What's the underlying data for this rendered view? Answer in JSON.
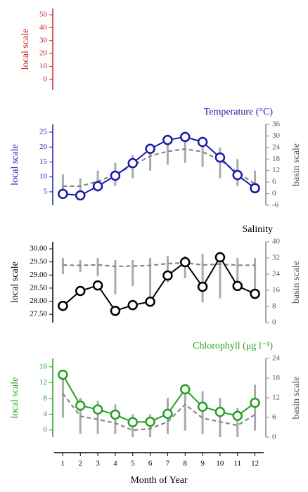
{
  "chart_data": [
    {
      "type": "line",
      "ylabel": "local scale",
      "color": "#cc2222",
      "ylim": [
        -8.2,
        54.9
      ],
      "yticks": [
        0,
        10,
        20,
        30,
        40,
        50
      ]
    },
    {
      "type": "line",
      "title": "Temperature (°C)",
      "ylabel": "local scale",
      "y2label": "basin scale",
      "color": "#1a1aaa",
      "x": [
        1,
        2,
        3,
        4,
        5,
        6,
        7,
        8,
        9,
        10,
        11,
        12
      ],
      "xlim": [
        0.5,
        12.5
      ],
      "ylim": [
        0.5,
        27.6
      ],
      "yticks": [
        5,
        10,
        15,
        20,
        25
      ],
      "y2lim": [
        -6,
        36
      ],
      "y2ticks": [
        -6,
        0,
        6,
        12,
        18,
        24,
        30,
        36
      ],
      "series": [
        {
          "color": "#1a1aaa",
          "values": [
            4.3,
            3.8,
            6.9,
            10.4,
            14.6,
            19.4,
            22.4,
            23.4,
            21.7,
            16.5,
            10.6,
            6.2
          ],
          "marker": "circle"
        },
        {
          "color": "#888888",
          "axis": "y2",
          "dash": true,
          "values": [
            3.9,
            3.9,
            6.4,
            10,
            14.5,
            19.6,
            22,
            23.2,
            21.8,
            17.4,
            11.2,
            5
          ]
        }
      ],
      "ranges": {
        "color": "#aaaaaa",
        "axis": "y2",
        "low": [
          -2,
          -1,
          1,
          4,
          8,
          12,
          15,
          16,
          14,
          8,
          4,
          1
        ],
        "high": [
          10,
          8,
          12,
          16,
          20,
          26,
          28,
          29,
          28,
          24,
          18,
          12
        ]
      }
    },
    {
      "type": "line",
      "title": "Salinity",
      "ylabel": "local scale",
      "y2label": "basin scale",
      "color": "#000000",
      "x": [
        1,
        2,
        3,
        4,
        5,
        6,
        7,
        8,
        9,
        10,
        11,
        12
      ],
      "xlim": [
        0.5,
        12.5
      ],
      "ylim": [
        27.18,
        30.27
      ],
      "yticks": [
        {
          "value": 27.5,
          "label": "27.50"
        },
        {
          "value": 28,
          "label": "28.00"
        },
        {
          "value": 28.5,
          "label": "28.50"
        },
        {
          "value": 29,
          "label": "29.00"
        },
        {
          "value": 29.5,
          "label": "29.50"
        },
        {
          "value": 30,
          "label": "30.00"
        }
      ],
      "y2lim": [
        0,
        40
      ],
      "y2ticks": [
        0,
        8,
        16,
        24,
        32,
        40
      ],
      "series": [
        {
          "color": "#000000",
          "values": [
            27.82,
            28.39,
            28.6,
            27.63,
            27.85,
            27.98,
            28.98,
            29.49,
            28.55,
            29.68,
            28.58,
            28.28
          ],
          "marker": "circle"
        },
        {
          "color": "#888888",
          "axis": "y2",
          "dash": true,
          "values": [
            28.5,
            28.3,
            28.6,
            27.8,
            28,
            28.3,
            29.2,
            29.6,
            28.5,
            29,
            28.4,
            28.4
          ]
        }
      ],
      "ranges": {
        "color": "#aaaaaa",
        "axis": "y2",
        "low": [
          24,
          25,
          23,
          14,
          18,
          12,
          20,
          22,
          10,
          12,
          20,
          12
        ],
        "high": [
          32,
          31,
          32,
          31,
          31,
          32,
          33,
          33,
          34,
          33,
          32,
          32
        ]
      }
    },
    {
      "type": "line",
      "title": "Chlorophyll (μg l⁻¹)",
      "ylabel": "local scale",
      "y2label": "basin scale",
      "color": "#22a022",
      "x": [
        1,
        2,
        3,
        4,
        5,
        6,
        7,
        8,
        9,
        10,
        11,
        12
      ],
      "xlim": [
        0.5,
        12.5
      ],
      "xticks": [
        1,
        2,
        3,
        4,
        5,
        6,
        7,
        8,
        9,
        10,
        11,
        12
      ],
      "xlabel": "Month of Year",
      "ylim": [
        -1.8,
        18.1
      ],
      "yticks": [
        0,
        4,
        8,
        12,
        16
      ],
      "y2lim": [
        0,
        24
      ],
      "y2ticks": [
        0,
        6,
        12,
        18,
        24
      ],
      "series": [
        {
          "color": "#22a022",
          "values": [
            14,
            6.2,
            5.2,
            3.9,
            2,
            2.1,
            4.1,
            10.3,
            5.9,
            4.6,
            3.6,
            6.9
          ],
          "marker": "circle"
        },
        {
          "color": "#888888",
          "axis": "y2",
          "dash": true,
          "values": [
            13.3,
            6.4,
            5.4,
            4.3,
            2.1,
            2.6,
            4.7,
            10,
            5.8,
            4.7,
            3.6,
            6.9
          ]
        }
      ],
      "ranges": {
        "color": "#aaaaaa",
        "axis": "y2",
        "low": [
          6,
          1,
          1,
          1,
          0,
          0,
          1,
          2,
          1,
          0,
          0,
          2
        ],
        "high": [
          18,
          12,
          11,
          10,
          7,
          7,
          12,
          16,
          14,
          12,
          9,
          16
        ]
      }
    }
  ]
}
